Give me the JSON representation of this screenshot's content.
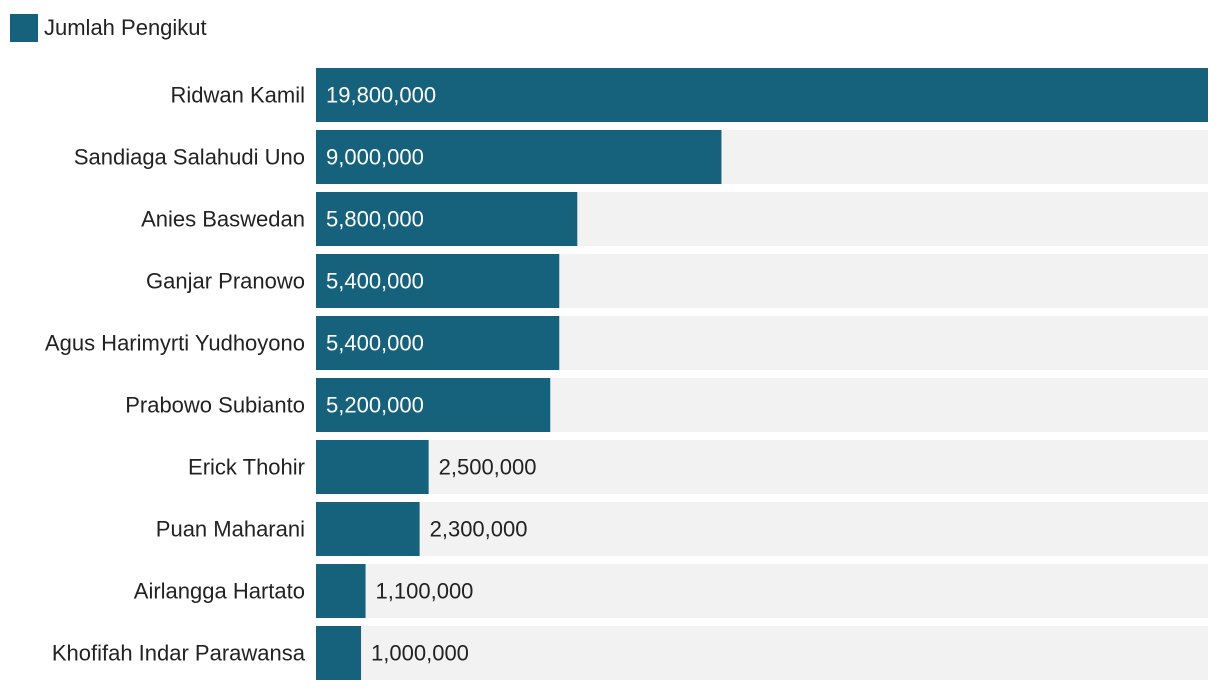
{
  "colors": {
    "bar": "#16627c",
    "track": "#f2f2f2",
    "label_inside": "#ffffff",
    "label_outside": "#222222"
  },
  "chart_data": {
    "type": "bar",
    "orientation": "horizontal",
    "legend": {
      "position": "top-left",
      "entries": [
        "Jumlah Pengikut"
      ]
    },
    "categories": [
      "Ridwan Kamil",
      "Sandiaga Salahudi Uno",
      "Anies Baswedan",
      "Ganjar Pranowo",
      "Agus Harimyrti Yudhoyono",
      "Prabowo Subianto",
      "Erick Thohir",
      "Puan Maharani",
      "Airlangga Hartato",
      "Khofifah Indar Parawansa"
    ],
    "series": [
      {
        "name": "Jumlah Pengikut",
        "values": [
          19800000,
          9000000,
          5800000,
          5400000,
          5400000,
          5200000,
          2500000,
          2300000,
          1100000,
          1000000
        ]
      }
    ],
    "data_labels": [
      "19,800,000",
      "9,000,000",
      "5,800,000",
      "5,400,000",
      "5,400,000",
      "5,200,000",
      "2,500,000",
      "2,300,000",
      "1,100,000",
      "1,000,000"
    ],
    "xlim": [
      0,
      19800000
    ],
    "grid": false
  }
}
